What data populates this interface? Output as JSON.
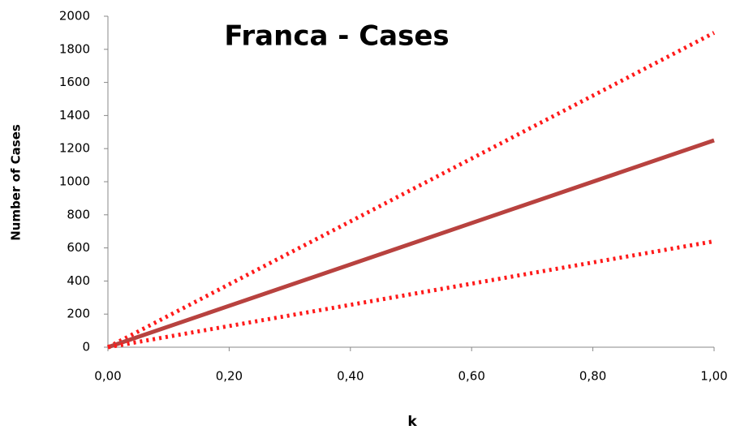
{
  "chart_data": {
    "type": "line",
    "title": "Franca - Cases",
    "x_label": "k",
    "y_label": "Number of Cases",
    "x": [
      0,
      0.5,
      1
    ],
    "series": [
      {
        "color": "#ff1a1a",
        "line_style": "dotted",
        "values": [
          0,
          950,
          1900
        ]
      },
      {
        "color": "#b8423f",
        "line_style": "solid",
        "values": [
          0,
          625,
          1250
        ]
      },
      {
        "color": "#ff1a1a",
        "line_style": "dotted",
        "values": [
          0,
          320,
          640
        ]
      }
    ],
    "xlim": [
      0,
      1
    ],
    "xticks": [
      {
        "value": 0,
        "label": "0,00"
      },
      {
        "value": 0.2,
        "label": "0,20"
      },
      {
        "value": 0.4,
        "label": "0,40"
      },
      {
        "value": 0.6,
        "label": "0,60"
      },
      {
        "value": 0.8,
        "label": "0,80"
      },
      {
        "value": 1,
        "label": "1,00"
      }
    ],
    "ylim": [
      0,
      2000
    ],
    "yticks": [
      0,
      200,
      400,
      600,
      800,
      1000,
      1200,
      1400,
      1600,
      1800,
      2000
    ],
    "grid": false
  }
}
